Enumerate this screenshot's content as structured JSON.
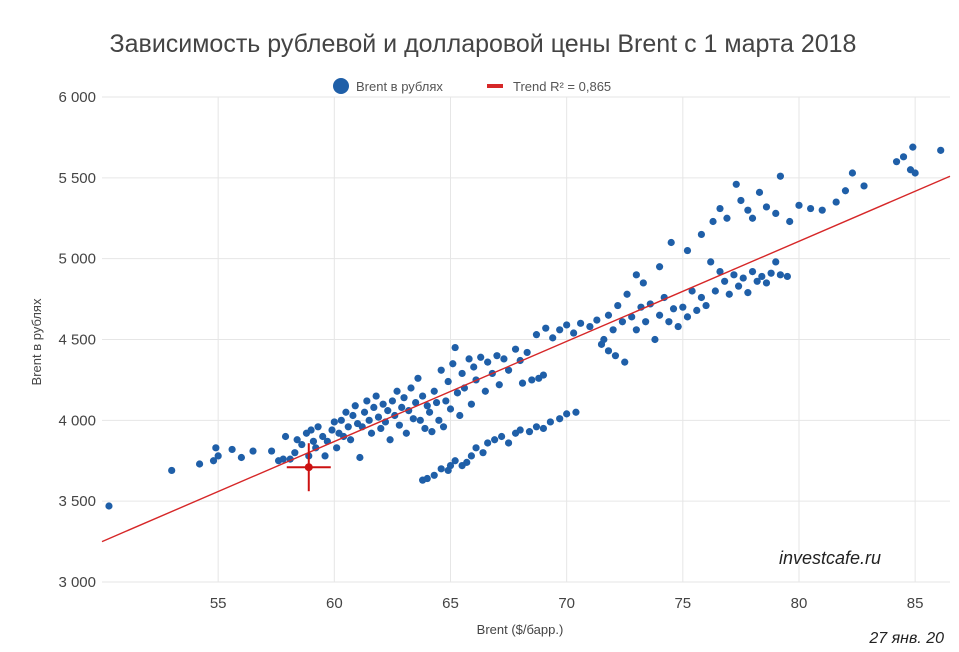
{
  "chart_data": {
    "type": "scatter",
    "title": "Зависимость рублевой и долларовой цены Brent с 1 марта 2018",
    "xlabel": "Brent ($/барр.)",
    "ylabel": "Brent в рублях",
    "xlim": [
      50,
      86.5
    ],
    "ylim": [
      3000,
      6000
    ],
    "x_ticks": [
      55,
      60,
      65,
      70,
      75,
      80,
      85
    ],
    "y_ticks": [
      3000,
      3500,
      4000,
      4500,
      5000,
      5500,
      6000
    ],
    "y_tick_labels": [
      "3 000",
      "3 500",
      "4 000",
      "4 500",
      "5 000",
      "5 500",
      "6 000"
    ],
    "grid": true,
    "legend_position": "top-center",
    "colors": {
      "points": "#1f5fa8",
      "trend": "#d62728",
      "highlight": "#cc1111",
      "grid": "#e6e6e6"
    },
    "series": [
      {
        "name": "Brent в рублях",
        "points": [
          [
            50.3,
            3470
          ],
          [
            53.0,
            3690
          ],
          [
            54.2,
            3730
          ],
          [
            54.8,
            3750
          ],
          [
            54.9,
            3830
          ],
          [
            55.0,
            3780
          ],
          [
            55.6,
            3820
          ],
          [
            56.0,
            3770
          ],
          [
            56.5,
            3810
          ],
          [
            57.3,
            3810
          ],
          [
            57.6,
            3750
          ],
          [
            57.8,
            3760
          ],
          [
            57.9,
            3900
          ],
          [
            58.1,
            3760
          ],
          [
            58.3,
            3800
          ],
          [
            58.4,
            3880
          ],
          [
            58.6,
            3850
          ],
          [
            58.8,
            3920
          ],
          [
            58.9,
            3780
          ],
          [
            59.0,
            3940
          ],
          [
            59.1,
            3870
          ],
          [
            59.2,
            3830
          ],
          [
            59.3,
            3960
          ],
          [
            59.5,
            3900
          ],
          [
            59.6,
            3780
          ],
          [
            59.7,
            3870
          ],
          [
            59.9,
            3940
          ],
          [
            60.0,
            3990
          ],
          [
            60.1,
            3830
          ],
          [
            60.2,
            3920
          ],
          [
            60.3,
            4000
          ],
          [
            60.4,
            3900
          ],
          [
            60.5,
            4050
          ],
          [
            60.6,
            3960
          ],
          [
            60.7,
            3880
          ],
          [
            60.8,
            4030
          ],
          [
            60.9,
            4090
          ],
          [
            61.0,
            3980
          ],
          [
            61.1,
            3770
          ],
          [
            61.2,
            3960
          ],
          [
            61.3,
            4050
          ],
          [
            61.4,
            4120
          ],
          [
            61.5,
            4000
          ],
          [
            61.6,
            3920
          ],
          [
            61.7,
            4080
          ],
          [
            61.8,
            4150
          ],
          [
            61.9,
            4020
          ],
          [
            62.0,
            3950
          ],
          [
            62.1,
            4100
          ],
          [
            62.2,
            3990
          ],
          [
            62.3,
            4060
          ],
          [
            62.4,
            3880
          ],
          [
            62.5,
            4120
          ],
          [
            62.6,
            4030
          ],
          [
            62.7,
            4180
          ],
          [
            62.8,
            3970
          ],
          [
            62.9,
            4080
          ],
          [
            63.0,
            4140
          ],
          [
            63.1,
            3920
          ],
          [
            63.2,
            4060
          ],
          [
            63.3,
            4200
          ],
          [
            63.4,
            4010
          ],
          [
            63.5,
            4110
          ],
          [
            63.6,
            4260
          ],
          [
            63.7,
            4000
          ],
          [
            63.8,
            4150
          ],
          [
            63.9,
            3950
          ],
          [
            64.0,
            4090
          ],
          [
            64.1,
            4050
          ],
          [
            64.2,
            3930
          ],
          [
            64.3,
            4180
          ],
          [
            64.4,
            4110
          ],
          [
            64.5,
            4000
          ],
          [
            64.6,
            4310
          ],
          [
            64.7,
            3960
          ],
          [
            64.8,
            4120
          ],
          [
            64.9,
            4240
          ],
          [
            65.0,
            4070
          ],
          [
            65.1,
            4350
          ],
          [
            65.2,
            4450
          ],
          [
            65.3,
            4170
          ],
          [
            65.4,
            4030
          ],
          [
            65.5,
            4290
          ],
          [
            65.6,
            4200
          ],
          [
            65.8,
            4380
          ],
          [
            65.9,
            4100
          ],
          [
            66.0,
            4330
          ],
          [
            66.1,
            4250
          ],
          [
            66.3,
            4390
          ],
          [
            66.5,
            4180
          ],
          [
            66.6,
            4360
          ],
          [
            66.8,
            4290
          ],
          [
            67.0,
            4400
          ],
          [
            67.1,
            4220
          ],
          [
            67.3,
            4380
          ],
          [
            67.5,
            4310
          ],
          [
            67.8,
            4440
          ],
          [
            68.0,
            4370
          ],
          [
            68.1,
            4230
          ],
          [
            68.3,
            4420
          ],
          [
            68.5,
            4250
          ],
          [
            68.8,
            4260
          ],
          [
            69.0,
            4280
          ],
          [
            63.8,
            3630
          ],
          [
            64.0,
            3640
          ],
          [
            64.3,
            3660
          ],
          [
            64.6,
            3700
          ],
          [
            64.9,
            3690
          ],
          [
            65.0,
            3720
          ],
          [
            65.2,
            3750
          ],
          [
            65.5,
            3720
          ],
          [
            65.7,
            3740
          ],
          [
            65.9,
            3780
          ],
          [
            66.1,
            3830
          ],
          [
            66.4,
            3800
          ],
          [
            66.6,
            3860
          ],
          [
            66.9,
            3880
          ],
          [
            67.2,
            3900
          ],
          [
            67.5,
            3860
          ],
          [
            67.8,
            3920
          ],
          [
            68.0,
            3940
          ],
          [
            68.4,
            3930
          ],
          [
            68.7,
            3960
          ],
          [
            69.0,
            3950
          ],
          [
            69.3,
            3990
          ],
          [
            69.7,
            4010
          ],
          [
            70.0,
            4040
          ],
          [
            70.4,
            4050
          ],
          [
            68.7,
            4530
          ],
          [
            69.1,
            4570
          ],
          [
            69.4,
            4510
          ],
          [
            69.7,
            4560
          ],
          [
            70.0,
            4590
          ],
          [
            70.3,
            4540
          ],
          [
            70.6,
            4600
          ],
          [
            71.0,
            4580
          ],
          [
            71.3,
            4620
          ],
          [
            71.6,
            4500
          ],
          [
            71.8,
            4650
          ],
          [
            72.0,
            4560
          ],
          [
            72.2,
            4710
          ],
          [
            72.4,
            4610
          ],
          [
            72.6,
            4780
          ],
          [
            72.8,
            4640
          ],
          [
            73.0,
            4560
          ],
          [
            73.2,
            4700
          ],
          [
            73.4,
            4610
          ],
          [
            73.6,
            4720
          ],
          [
            73.8,
            4500
          ],
          [
            74.0,
            4650
          ],
          [
            74.2,
            4760
          ],
          [
            74.4,
            4610
          ],
          [
            74.6,
            4690
          ],
          [
            74.8,
            4580
          ],
          [
            75.0,
            4700
          ],
          [
            75.2,
            4640
          ],
          [
            75.4,
            4800
          ],
          [
            75.6,
            4680
          ],
          [
            75.8,
            4760
          ],
          [
            76.0,
            4710
          ],
          [
            76.2,
            4980
          ],
          [
            76.4,
            4800
          ],
          [
            76.6,
            4920
          ],
          [
            76.8,
            4860
          ],
          [
            77.0,
            4780
          ],
          [
            77.2,
            4900
          ],
          [
            77.4,
            4830
          ],
          [
            77.6,
            4880
          ],
          [
            77.8,
            4790
          ],
          [
            78.0,
            4920
          ],
          [
            78.2,
            4860
          ],
          [
            78.4,
            4890
          ],
          [
            78.6,
            4850
          ],
          [
            78.8,
            4910
          ],
          [
            79.0,
            4980
          ],
          [
            79.2,
            4900
          ],
          [
            79.5,
            4890
          ],
          [
            71.5,
            4470
          ],
          [
            71.8,
            4430
          ],
          [
            72.1,
            4400
          ],
          [
            72.5,
            4360
          ],
          [
            73.0,
            4900
          ],
          [
            73.3,
            4850
          ],
          [
            74.0,
            4950
          ],
          [
            74.5,
            5100
          ],
          [
            75.2,
            5050
          ],
          [
            75.8,
            5150
          ],
          [
            76.3,
            5230
          ],
          [
            76.6,
            5310
          ],
          [
            76.9,
            5250
          ],
          [
            77.3,
            5460
          ],
          [
            77.5,
            5360
          ],
          [
            77.8,
            5300
          ],
          [
            78.0,
            5250
          ],
          [
            78.3,
            5410
          ],
          [
            78.6,
            5320
          ],
          [
            79.0,
            5280
          ],
          [
            79.2,
            5510
          ],
          [
            79.6,
            5230
          ],
          [
            80.0,
            5330
          ],
          [
            80.5,
            5310
          ],
          [
            81.0,
            5300
          ],
          [
            81.6,
            5350
          ],
          [
            82.0,
            5420
          ],
          [
            82.3,
            5530
          ],
          [
            82.8,
            5450
          ],
          [
            84.2,
            5600
          ],
          [
            84.5,
            5630
          ],
          [
            84.8,
            5550
          ],
          [
            85.0,
            5530
          ],
          [
            84.9,
            5690
          ],
          [
            86.1,
            5670
          ]
        ]
      }
    ],
    "trend": {
      "name": "Trend R² = 0,865",
      "x0": 50,
      "y0": 3250,
      "x1": 86.5,
      "y1": 5510
    },
    "highlight_point": {
      "x": 58.9,
      "y": 3710
    }
  },
  "annotations": {
    "watermark": "investcafe.ru",
    "date": "27 янв. 20"
  }
}
